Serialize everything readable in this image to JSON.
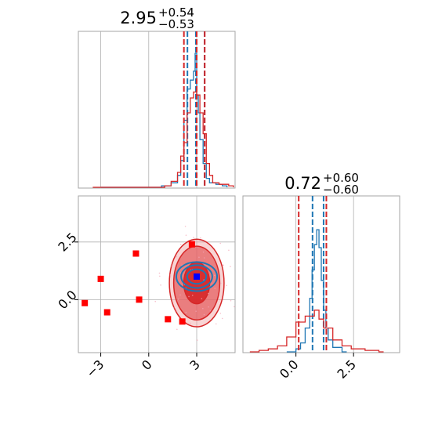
{
  "chart_data": [
    {
      "type": "histogram",
      "panel": "top-left",
      "title": {
        "value": "2.95",
        "plus": "+0.54",
        "minus": "−0.53"
      },
      "xlim": [
        -4.4,
        5.4
      ],
      "grid": true,
      "series": [
        {
          "color": "#1f77b4",
          "bins": [
            [
              -3.0,
              0
            ],
            [
              0.8,
              0.01
            ],
            [
              1.4,
              0.03
            ],
            [
              1.8,
              0.08
            ],
            [
              2.0,
              0.18
            ],
            [
              2.2,
              0.45
            ],
            [
              2.4,
              0.66
            ],
            [
              2.6,
              0.72
            ],
            [
              2.8,
              0.78
            ],
            [
              2.9,
              0.9
            ],
            [
              3.0,
              0.62
            ],
            [
              3.1,
              0.5
            ],
            [
              3.2,
              0.32
            ],
            [
              3.4,
              0.16
            ],
            [
              3.6,
              0.06
            ],
            [
              3.8,
              0.03
            ],
            [
              4.2,
              0.02
            ],
            [
              4.6,
              0.01
            ]
          ],
          "quantiles": [
            2.42,
            2.95,
            3.49
          ]
        },
        {
          "color": "#d62728",
          "bins": [
            [
              -3.5,
              0
            ],
            [
              1.0,
              0.01
            ],
            [
              1.4,
              0.04
            ],
            [
              1.8,
              0.1
            ],
            [
              2.0,
              0.21
            ],
            [
              2.2,
              0.3
            ],
            [
              2.4,
              0.5
            ],
            [
              2.6,
              0.6
            ],
            [
              2.8,
              0.64
            ],
            [
              3.0,
              0.62
            ],
            [
              3.2,
              0.5
            ],
            [
              3.4,
              0.36
            ],
            [
              3.6,
              0.16
            ],
            [
              3.8,
              0.08
            ],
            [
              4.0,
              0.03
            ],
            [
              4.4,
              0.02
            ],
            [
              5.0,
              0.01
            ]
          ],
          "quantiles": [
            2.2,
            3.0,
            3.5
          ]
        }
      ]
    },
    {
      "type": "scatter",
      "panel": "bottom-left",
      "x_ticks": [
        "−3",
        "0",
        "3"
      ],
      "y_ticks": [
        "0.0",
        "2.5"
      ],
      "xlim": [
        -4.4,
        5.4
      ],
      "ylim": [
        -2.3,
        4.5
      ],
      "grid": true,
      "markers": [
        {
          "x": -4.0,
          "y": -0.15
        },
        {
          "x": -3.0,
          "y": 0.9
        },
        {
          "x": -2.6,
          "y": -0.55
        },
        {
          "x": -0.8,
          "y": 2.0
        },
        {
          "x": -0.6,
          "y": 0.0
        },
        {
          "x": 1.2,
          "y": -0.85
        },
        {
          "x": 2.1,
          "y": -0.95
        },
        {
          "x": 2.7,
          "y": 2.4
        }
      ],
      "center_marker": {
        "x": 3.0,
        "y": 1.0,
        "color": "#0000ff"
      },
      "contours": [
        {
          "color": "#d62728",
          "cx": 3.0,
          "cy": 0.72,
          "rx": [
            0.9,
            1.6,
            1.9
          ],
          "ry": [
            0.9,
            1.6,
            1.9
          ]
        },
        {
          "color": "#1f77b4",
          "cx": 3.0,
          "cy": 1.0,
          "rx": [
            0.8,
            1.3,
            1.7
          ],
          "ry": [
            0.35,
            0.55,
            0.7
          ]
        }
      ]
    },
    {
      "type": "histogram",
      "panel": "bottom-right",
      "title": {
        "value": "0.72",
        "plus": "+0.60",
        "minus": "−0.60"
      },
      "x_ticks": [
        "0.0",
        "2.5"
      ],
      "xlim": [
        -2.3,
        4.5
      ],
      "grid": true,
      "series": [
        {
          "color": "#1f77b4",
          "bins": [
            [
              -0.4,
              0
            ],
            [
              0.0,
              0.02
            ],
            [
              0.2,
              0.06
            ],
            [
              0.4,
              0.16
            ],
            [
              0.6,
              0.36
            ],
            [
              0.7,
              0.55
            ],
            [
              0.8,
              0.72
            ],
            [
              0.9,
              0.82
            ],
            [
              1.0,
              0.7
            ],
            [
              1.1,
              0.48
            ],
            [
              1.2,
              0.28
            ],
            [
              1.3,
              0.16
            ],
            [
              1.4,
              0.08
            ],
            [
              1.6,
              0.03
            ],
            [
              2.0,
              0
            ]
          ],
          "quantiles": [
            0.72,
            1.2
          ]
        },
        {
          "color": "#d62728",
          "bins": [
            [
              -2.0,
              0
            ],
            [
              -1.6,
              0.01
            ],
            [
              -1.2,
              0.02
            ],
            [
              -0.8,
              0.04
            ],
            [
              -0.4,
              0.1
            ],
            [
              0.0,
              0.2
            ],
            [
              0.4,
              0.24
            ],
            [
              0.8,
              0.28
            ],
            [
              1.0,
              0.22
            ],
            [
              1.2,
              0.16
            ],
            [
              1.6,
              0.08
            ],
            [
              2.0,
              0.04
            ],
            [
              2.4,
              0.02
            ],
            [
              3.0,
              0.01
            ],
            [
              3.6,
              0
            ]
          ],
          "quantiles": [
            0.12,
            1.32
          ]
        }
      ]
    }
  ]
}
